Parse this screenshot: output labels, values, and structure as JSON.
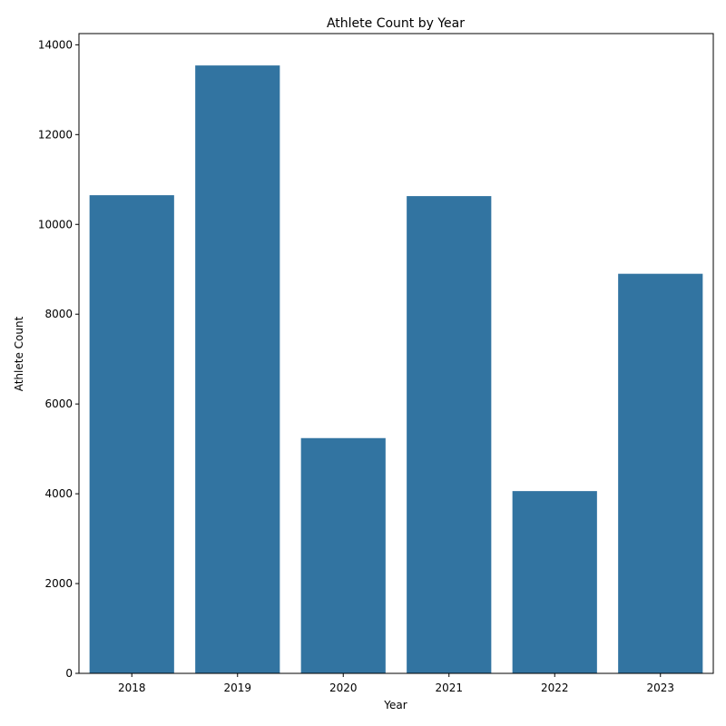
{
  "chart_data": {
    "type": "bar",
    "title": "Athlete Count by Year",
    "xlabel": "Year",
    "ylabel": "Athlete Count",
    "categories": [
      "2018",
      "2019",
      "2020",
      "2021",
      "2022",
      "2023"
    ],
    "values": [
      10650,
      13540,
      5240,
      10630,
      4060,
      8900
    ],
    "ylim": [
      0,
      14250
    ],
    "yticks": [
      0,
      2000,
      4000,
      6000,
      8000,
      10000,
      12000,
      14000
    ],
    "bar_color": "#3274a1",
    "grid": false,
    "legend": "none"
  }
}
